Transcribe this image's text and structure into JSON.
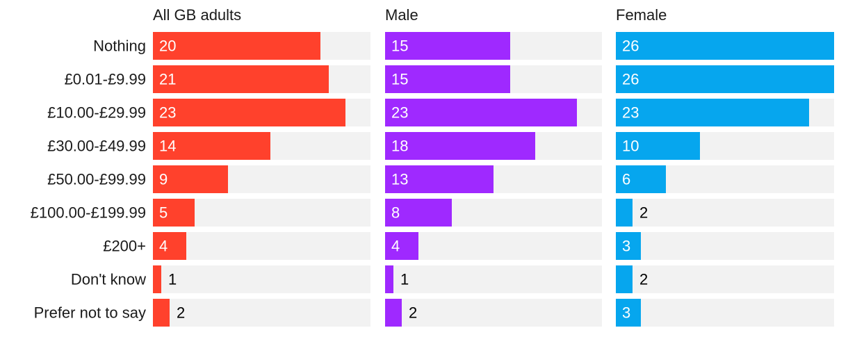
{
  "chart_data": {
    "type": "bar",
    "orientation": "horizontal",
    "categories": [
      "Nothing",
      "£0.01-£9.99",
      "£10.00-£29.99",
      "£30.00-£49.99",
      "£50.00-£99.99",
      "£100.00-£199.99",
      "£200+",
      "Don't know",
      "Prefer not to say"
    ],
    "series": [
      {
        "name": "All GB adults",
        "color": "#ff412c",
        "values": [
          20,
          21,
          23,
          14,
          9,
          5,
          4,
          1,
          2
        ]
      },
      {
        "name": "Male",
        "color": "#9f29ff",
        "values": [
          15,
          15,
          23,
          18,
          13,
          8,
          4,
          1,
          2
        ]
      },
      {
        "name": "Female",
        "color": "#06a6ee",
        "values": [
          26,
          26,
          23,
          10,
          6,
          2,
          3,
          2,
          3
        ]
      }
    ],
    "xlim": [
      0,
      26
    ],
    "track_color": "#f2f2f2",
    "label_color_inside": "#ffffff",
    "label_color_outside": "#000000"
  }
}
